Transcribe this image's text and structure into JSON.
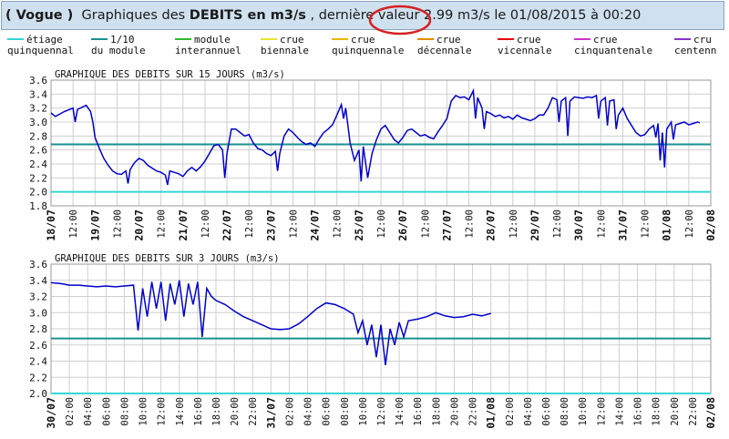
{
  "header": {
    "station": "( Vogue )",
    "text_before": "Graphiques des",
    "text_bold": "DEBITS en m3/s",
    "text_mid": ", dernière valeur",
    "value": "2.99 m3/s",
    "text_after": "le 01/08/2015 à 00:20"
  },
  "legend": [
    {
      "line1": "étiage",
      "line2": "quinquennal",
      "color": "#33d6d6"
    },
    {
      "line1": "1/10",
      "line2": "du module",
      "color": "#1a9090"
    },
    {
      "line1": "module",
      "line2": "interannuel",
      "color": "#2db82d"
    },
    {
      "line1": "crue",
      "line2": "biennale",
      "color": "#e6e633"
    },
    {
      "line1": "crue",
      "line2": "quinquennale",
      "color": "#e6b800"
    },
    {
      "line1": "crue",
      "line2": "décennale",
      "color": "#e68a00"
    },
    {
      "line1": "crue",
      "line2": "vicennale",
      "color": "#e60000"
    },
    {
      "line1": "crue",
      "line2": "cinquantenale",
      "color": "#cc33cc"
    },
    {
      "line1": "cru",
      "line2": "centenn",
      "color": "#8833cc"
    }
  ],
  "chart_data": [
    {
      "type": "line",
      "title": "GRAPHIQUE DES DEBITS SUR 15 JOURS (m3/s)",
      "ylim": [
        1.8,
        3.6
      ],
      "yticks": [
        "1.8",
        "2.0",
        "2.2",
        "2.4",
        "2.6",
        "2.8",
        "3.0",
        "3.2",
        "3.4",
        "3.6"
      ],
      "xticks": [
        "18/07",
        "12:00",
        "19/07",
        "12:00",
        "20/07",
        "12:00",
        "21/07",
        "12:00",
        "22/07",
        "12:00",
        "23/07",
        "12:00",
        "24/07",
        "12:00",
        "25/07",
        "12:00",
        "26/07",
        "12:00",
        "27/07",
        "12:00",
        "28/07",
        "12:00",
        "29/07",
        "12:00",
        "30/07",
        "12:00",
        "31/07",
        "12:00",
        "01/08",
        "12:00",
        "02/08"
      ],
      "x_unit": "days_from_18_07",
      "grid": true,
      "thresholds": [
        {
          "name": "étiage quinquennal",
          "value": 2.0,
          "color": "#33d6d6"
        },
        {
          "name": "1/10 du module",
          "value": 2.68,
          "color": "#1a9090"
        }
      ],
      "series": [
        {
          "color": "#0000cc",
          "points": [
            [
              0,
              3.13
            ],
            [
              0.1,
              3.08
            ],
            [
              0.3,
              3.15
            ],
            [
              0.5,
              3.2
            ],
            [
              0.55,
              3.0
            ],
            [
              0.6,
              3.18
            ],
            [
              0.8,
              3.24
            ],
            [
              0.9,
              3.15
            ],
            [
              0.95,
              3.0
            ],
            [
              1.0,
              2.78
            ],
            [
              1.1,
              2.62
            ],
            [
              1.2,
              2.48
            ],
            [
              1.3,
              2.38
            ],
            [
              1.4,
              2.3
            ],
            [
              1.5,
              2.26
            ],
            [
              1.6,
              2.25
            ],
            [
              1.7,
              2.3
            ],
            [
              1.75,
              2.12
            ],
            [
              1.8,
              2.32
            ],
            [
              1.9,
              2.42
            ],
            [
              2.0,
              2.48
            ],
            [
              2.1,
              2.45
            ],
            [
              2.2,
              2.38
            ],
            [
              2.3,
              2.34
            ],
            [
              2.4,
              2.3
            ],
            [
              2.5,
              2.28
            ],
            [
              2.6,
              2.24
            ],
            [
              2.65,
              2.1
            ],
            [
              2.7,
              2.3
            ],
            [
              2.8,
              2.28
            ],
            [
              2.9,
              2.26
            ],
            [
              3.0,
              2.22
            ],
            [
              3.1,
              2.3
            ],
            [
              3.2,
              2.35
            ],
            [
              3.3,
              2.3
            ],
            [
              3.4,
              2.36
            ],
            [
              3.5,
              2.44
            ],
            [
              3.6,
              2.55
            ],
            [
              3.7,
              2.66
            ],
            [
              3.8,
              2.68
            ],
            [
              3.9,
              2.6
            ],
            [
              3.95,
              2.2
            ],
            [
              4.0,
              2.55
            ],
            [
              4.1,
              2.9
            ],
            [
              4.2,
              2.9
            ],
            [
              4.3,
              2.85
            ],
            [
              4.4,
              2.8
            ],
            [
              4.5,
              2.82
            ],
            [
              4.6,
              2.7
            ],
            [
              4.7,
              2.62
            ],
            [
              4.8,
              2.6
            ],
            [
              4.9,
              2.55
            ],
            [
              5.0,
              2.52
            ],
            [
              5.1,
              2.58
            ],
            [
              5.15,
              2.3
            ],
            [
              5.2,
              2.55
            ],
            [
              5.3,
              2.8
            ],
            [
              5.4,
              2.9
            ],
            [
              5.5,
              2.85
            ],
            [
              5.6,
              2.78
            ],
            [
              5.7,
              2.72
            ],
            [
              5.8,
              2.68
            ],
            [
              5.9,
              2.7
            ],
            [
              6.0,
              2.65
            ],
            [
              6.1,
              2.76
            ],
            [
              6.2,
              2.85
            ],
            [
              6.3,
              2.9
            ],
            [
              6.4,
              2.96
            ],
            [
              6.5,
              3.1
            ],
            [
              6.6,
              3.25
            ],
            [
              6.65,
              3.05
            ],
            [
              6.7,
              3.2
            ],
            [
              6.8,
              2.7
            ],
            [
              6.9,
              2.45
            ],
            [
              7.0,
              2.6
            ],
            [
              7.05,
              2.15
            ],
            [
              7.1,
              2.65
            ],
            [
              7.2,
              2.2
            ],
            [
              7.3,
              2.55
            ],
            [
              7.4,
              2.75
            ],
            [
              7.5,
              2.9
            ],
            [
              7.6,
              2.95
            ],
            [
              7.7,
              2.85
            ],
            [
              7.8,
              2.75
            ],
            [
              7.9,
              2.7
            ],
            [
              8.0,
              2.78
            ],
            [
              8.1,
              2.88
            ],
            [
              8.2,
              2.9
            ],
            [
              8.3,
              2.85
            ],
            [
              8.4,
              2.8
            ],
            [
              8.5,
              2.82
            ],
            [
              8.6,
              2.78
            ],
            [
              8.7,
              2.76
            ],
            [
              8.8,
              2.86
            ],
            [
              8.9,
              2.95
            ],
            [
              9.0,
              3.05
            ],
            [
              9.1,
              3.3
            ],
            [
              9.2,
              3.38
            ],
            [
              9.3,
              3.35
            ],
            [
              9.4,
              3.36
            ],
            [
              9.5,
              3.32
            ],
            [
              9.6,
              3.45
            ],
            [
              9.65,
              3.05
            ],
            [
              9.7,
              3.35
            ],
            [
              9.8,
              3.2
            ],
            [
              9.85,
              2.9
            ],
            [
              9.9,
              3.15
            ],
            [
              10.0,
              3.12
            ],
            [
              10.1,
              3.08
            ],
            [
              10.2,
              3.1
            ],
            [
              10.3,
              3.06
            ],
            [
              10.4,
              3.08
            ],
            [
              10.5,
              3.04
            ],
            [
              10.6,
              3.1
            ],
            [
              10.7,
              3.06
            ],
            [
              10.8,
              3.04
            ],
            [
              10.9,
              3.02
            ],
            [
              11.0,
              3.05
            ],
            [
              11.1,
              3.1
            ],
            [
              11.2,
              3.1
            ],
            [
              11.3,
              3.2
            ],
            [
              11.4,
              3.35
            ],
            [
              11.5,
              3.32
            ],
            [
              11.55,
              3.0
            ],
            [
              11.6,
              3.3
            ],
            [
              11.7,
              3.35
            ],
            [
              11.75,
              2.8
            ],
            [
              11.8,
              3.3
            ],
            [
              11.9,
              3.36
            ],
            [
              12.0,
              3.35
            ],
            [
              12.1,
              3.34
            ],
            [
              12.2,
              3.36
            ],
            [
              12.3,
              3.35
            ],
            [
              12.4,
              3.38
            ],
            [
              12.45,
              3.05
            ],
            [
              12.5,
              3.3
            ],
            [
              12.6,
              3.35
            ],
            [
              12.65,
              2.95
            ],
            [
              12.7,
              3.3
            ],
            [
              12.8,
              3.32
            ],
            [
              12.85,
              2.9
            ],
            [
              12.9,
              3.1
            ],
            [
              13.0,
              3.2
            ],
            [
              13.1,
              3.05
            ],
            [
              13.2,
              2.95
            ],
            [
              13.3,
              2.85
            ],
            [
              13.4,
              2.8
            ],
            [
              13.5,
              2.82
            ],
            [
              13.6,
              2.9
            ],
            [
              13.7,
              2.95
            ],
            [
              13.75,
              2.78
            ],
            [
              13.8,
              2.98
            ],
            [
              13.85,
              2.45
            ],
            [
              13.9,
              2.85
            ],
            [
              13.95,
              2.35
            ],
            [
              14.0,
              2.9
            ],
            [
              14.1,
              3.0
            ],
            [
              14.15,
              2.75
            ],
            [
              14.2,
              2.96
            ],
            [
              14.3,
              2.98
            ],
            [
              14.4,
              3.0
            ],
            [
              14.5,
              2.96
            ],
            [
              14.6,
              2.98
            ],
            [
              14.7,
              3.0
            ],
            [
              14.75,
              2.99
            ]
          ]
        }
      ]
    },
    {
      "type": "line",
      "title": "GRAPHIQUE DES DEBITS SUR 3 JOURS (m3/s)",
      "ylim": [
        2.0,
        3.6
      ],
      "yticks": [
        "2.0",
        "2.2",
        "2.4",
        "2.6",
        "2.8",
        "3.0",
        "3.2",
        "3.4",
        "3.6"
      ],
      "xticks": [
        "30/07",
        "02:00",
        "04:00",
        "06:00",
        "08:00",
        "10:00",
        "12:00",
        "14:00",
        "16:00",
        "18:00",
        "20:00",
        "22:00",
        "31/07",
        "02:00",
        "04:00",
        "06:00",
        "08:00",
        "10:00",
        "12:00",
        "14:00",
        "16:00",
        "18:00",
        "20:00",
        "22:00",
        "01/08",
        "02:00",
        "04:00",
        "06:00",
        "08:00",
        "10:00",
        "12:00",
        "14:00",
        "16:00",
        "18:00",
        "20:00",
        "22:00",
        "02/08"
      ],
      "x_unit": "hours_from_30_07",
      "grid": true,
      "thresholds": [
        {
          "name": "étiage quinquennal",
          "value": 2.0,
          "color": "#33d6d6"
        },
        {
          "name": "1/10 du module",
          "value": 2.68,
          "color": "#1a9090"
        }
      ],
      "series": [
        {
          "color": "#0000cc",
          "points": [
            [
              0,
              3.37
            ],
            [
              1,
              3.36
            ],
            [
              2,
              3.34
            ],
            [
              3,
              3.34
            ],
            [
              4,
              3.33
            ],
            [
              5,
              3.32
            ],
            [
              6,
              3.33
            ],
            [
              7,
              3.32
            ],
            [
              8,
              3.33
            ],
            [
              9,
              3.34
            ],
            [
              9.5,
              2.78
            ],
            [
              10,
              3.3
            ],
            [
              10.5,
              2.95
            ],
            [
              11,
              3.38
            ],
            [
              11.5,
              3.05
            ],
            [
              12,
              3.38
            ],
            [
              12.5,
              2.9
            ],
            [
              13,
              3.36
            ],
            [
              13.5,
              3.1
            ],
            [
              14,
              3.4
            ],
            [
              14.5,
              2.95
            ],
            [
              15,
              3.36
            ],
            [
              15.5,
              3.1
            ],
            [
              16,
              3.38
            ],
            [
              16.5,
              2.7
            ],
            [
              17,
              3.3
            ],
            [
              17.5,
              3.2
            ],
            [
              18,
              3.15
            ],
            [
              19,
              3.1
            ],
            [
              20,
              3.02
            ],
            [
              21,
              2.95
            ],
            [
              22,
              2.9
            ],
            [
              23,
              2.85
            ],
            [
              24,
              2.8
            ],
            [
              25,
              2.79
            ],
            [
              26,
              2.8
            ],
            [
              27,
              2.86
            ],
            [
              28,
              2.95
            ],
            [
              29,
              3.05
            ],
            [
              30,
              3.12
            ],
            [
              31,
              3.1
            ],
            [
              32,
              3.05
            ],
            [
              33,
              2.98
            ],
            [
              33.5,
              2.75
            ],
            [
              34,
              2.9
            ],
            [
              34.5,
              2.6
            ],
            [
              35,
              2.85
            ],
            [
              35.5,
              2.45
            ],
            [
              36,
              2.85
            ],
            [
              36.5,
              2.35
            ],
            [
              37,
              2.8
            ],
            [
              37.5,
              2.6
            ],
            [
              38,
              2.88
            ],
            [
              38.5,
              2.7
            ],
            [
              39,
              2.9
            ],
            [
              40,
              2.92
            ],
            [
              41,
              2.95
            ],
            [
              42,
              3.0
            ],
            [
              43,
              2.96
            ],
            [
              44,
              2.94
            ],
            [
              45,
              2.95
            ],
            [
              46,
              2.98
            ],
            [
              47,
              2.96
            ],
            [
              48,
              2.99
            ]
          ]
        }
      ]
    }
  ]
}
